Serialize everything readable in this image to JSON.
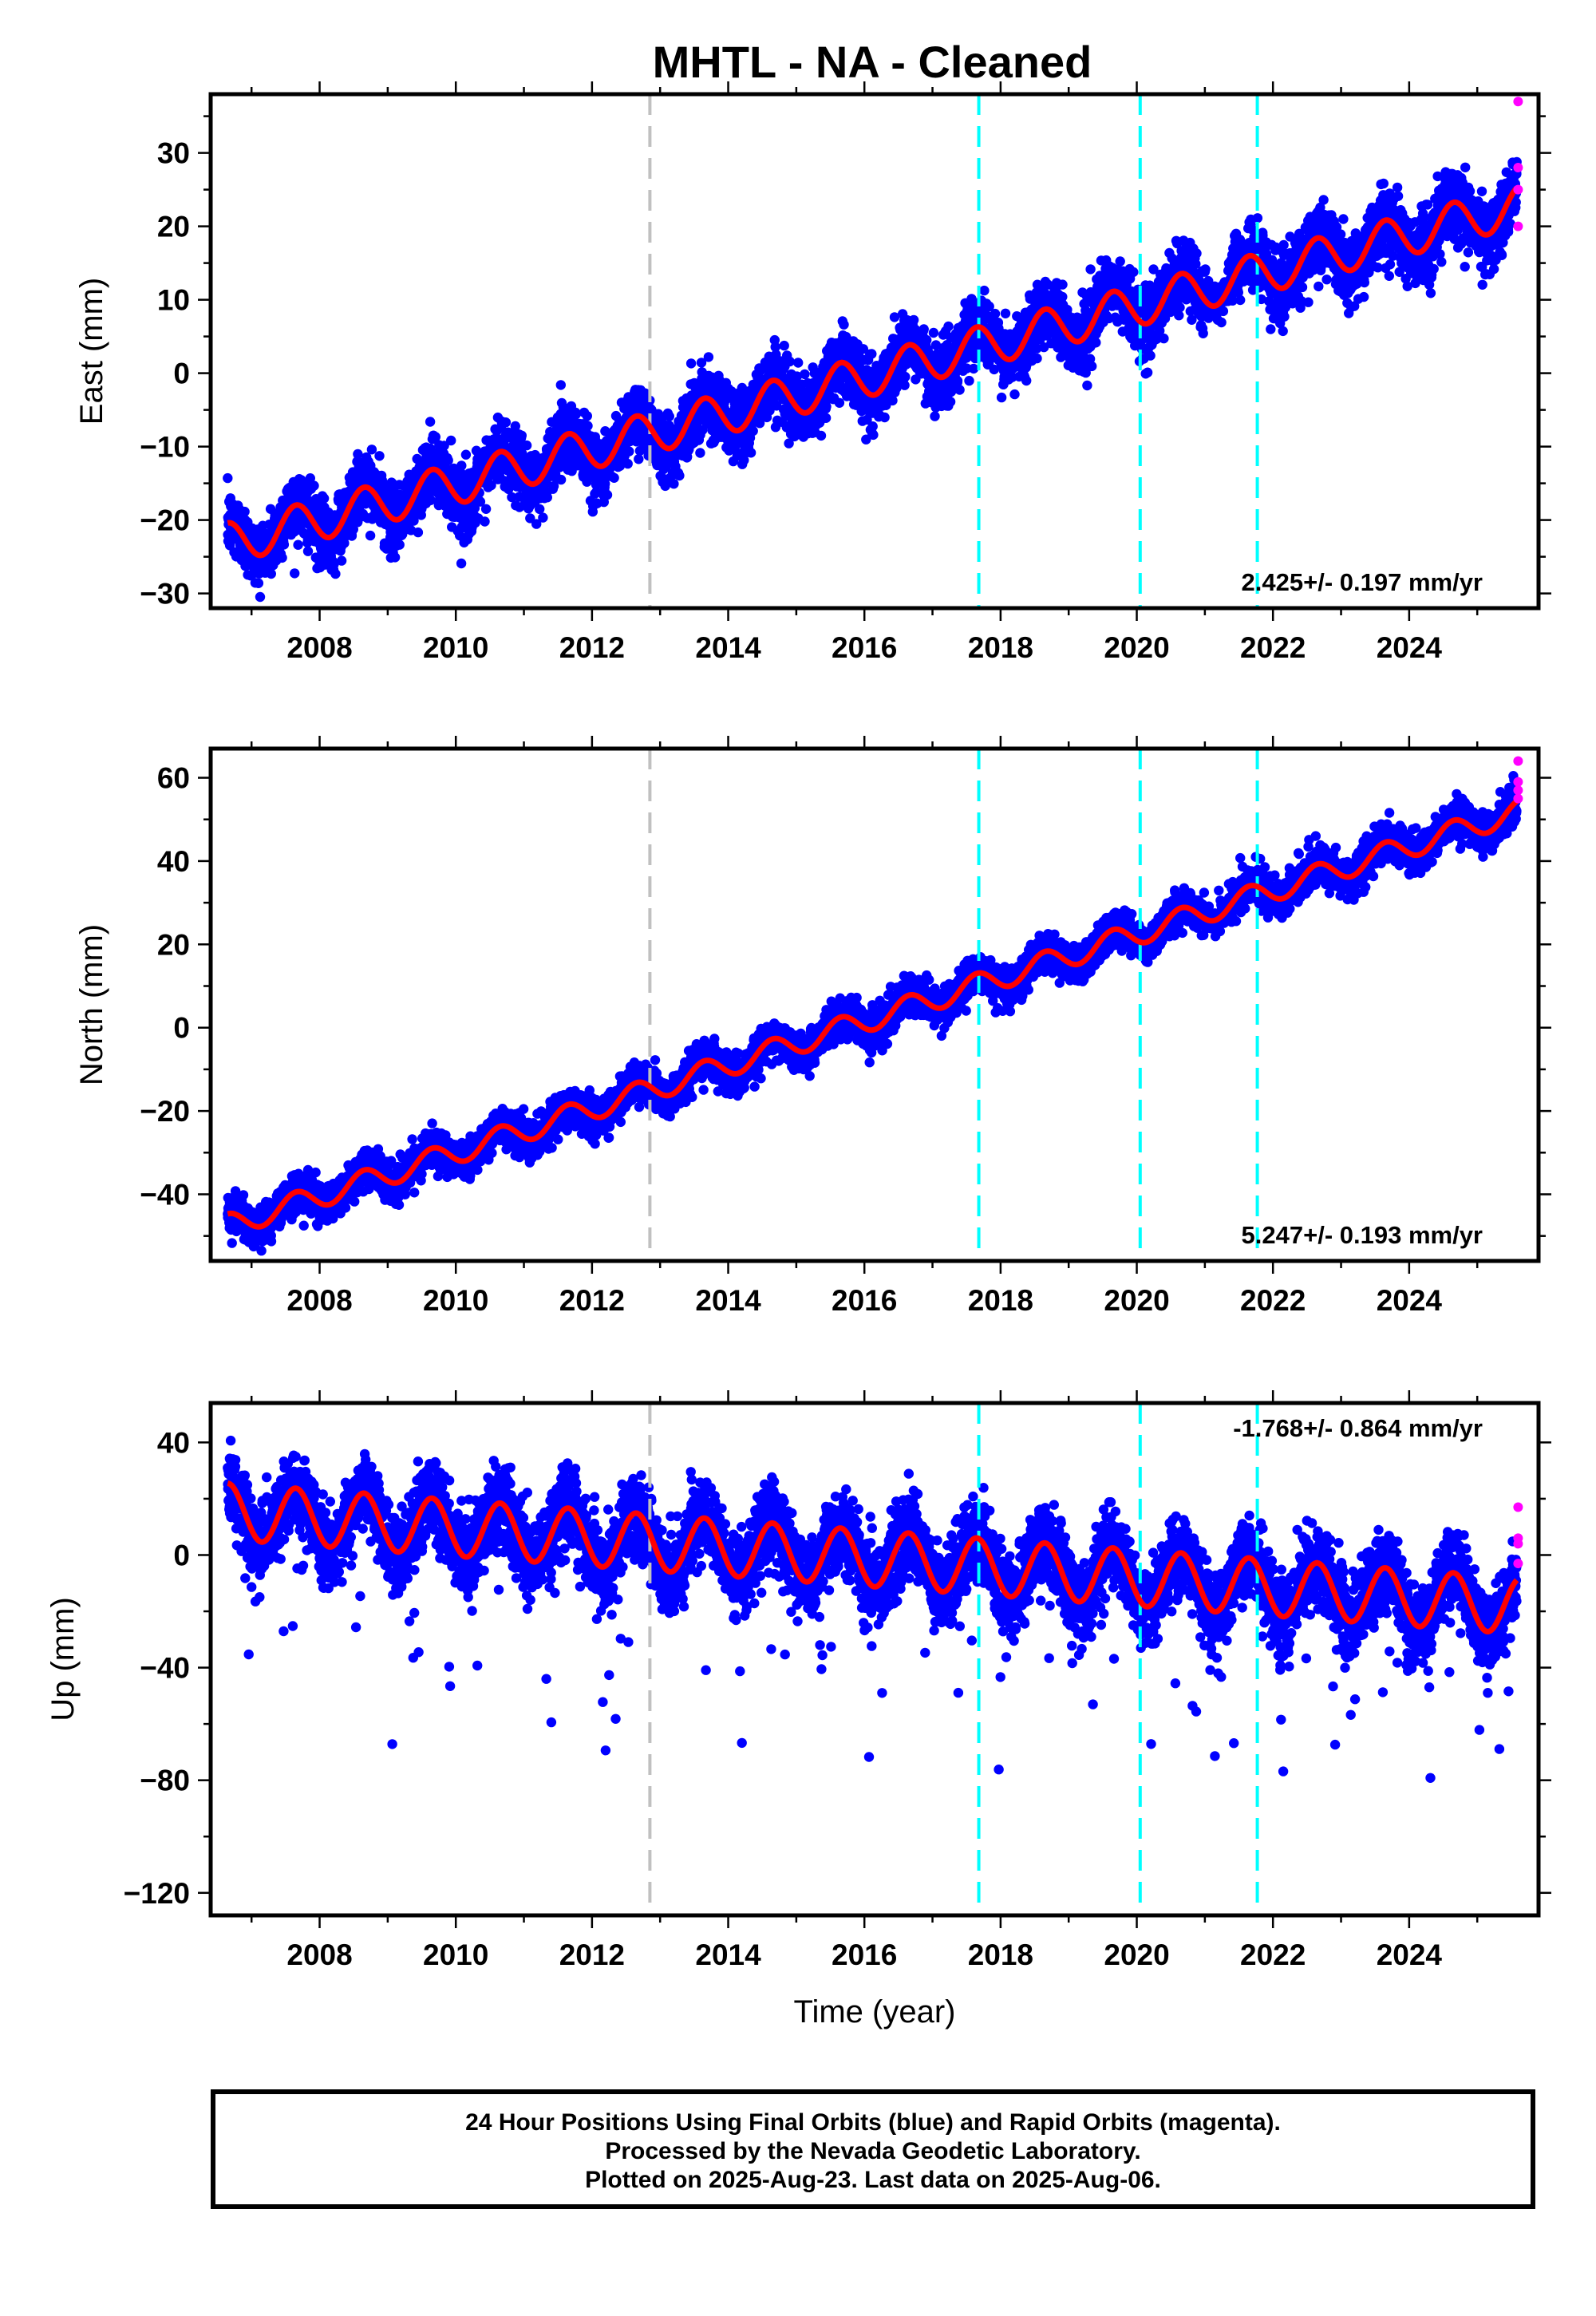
{
  "title": "MHTL  - NA - Cleaned",
  "footer": {
    "line1": "24 Hour Positions Using Final Orbits (blue) and Rapid Orbits (magenta).",
    "line2": "Processed by the Nevada Geodetic Laboratory.",
    "line3": "Plotted on 2025-Aug-23. Last data on 2025-Aug-06."
  },
  "colors": {
    "final_orbits": "#0000ff",
    "rapid_orbits": "#ff00ff",
    "model_fit": "#ff0000",
    "equipment_change": "#00ffff",
    "other_event": "#c0c0c0"
  },
  "chart_data": [
    {
      "type": "scatter",
      "ylabel": "East (mm)",
      "xlabel": "",
      "xlim": [
        2006.4,
        2025.9
      ],
      "ylim": [
        -32,
        38
      ],
      "x_ticks": [
        2008,
        2010,
        2012,
        2014,
        2016,
        2018,
        2020,
        2022,
        2024
      ],
      "y_ticks": [
        -30,
        -20,
        -10,
        0,
        10,
        20,
        30
      ],
      "y_tick_labels": [
        "−30",
        "−20",
        "−10",
        "0",
        "10",
        "20",
        "30"
      ],
      "rate_text": "2.425+/- 0.197 mm/yr",
      "rate_position": "bottom-right",
      "fit": {
        "offset": -23.2,
        "rate": 2.425,
        "annual_amplitude": 2.8
      },
      "gray_lines": [
        2012.85
      ],
      "cyan_lines": [
        2017.68,
        2020.05,
        2021.77
      ],
      "rapid_points": [
        {
          "x": 2025.6,
          "y": 37
        },
        {
          "x": 2025.6,
          "y": 28
        },
        {
          "x": 2025.6,
          "y": 25
        },
        {
          "x": 2025.6,
          "y": 20
        }
      ]
    },
    {
      "type": "scatter",
      "ylabel": "North (mm)",
      "xlabel": "",
      "xlim": [
        2006.4,
        2025.9
      ],
      "ylim": [
        -56,
        67
      ],
      "x_ticks": [
        2008,
        2010,
        2012,
        2014,
        2016,
        2018,
        2020,
        2022,
        2024
      ],
      "y_ticks": [
        -40,
        -20,
        0,
        20,
        40,
        60
      ],
      "y_tick_labels": [
        "−40",
        "−20",
        "0",
        "20",
        "40",
        "60"
      ],
      "rate_text": "5.247+/- 0.193 mm/yr",
      "rate_position": "bottom-right",
      "fit": {
        "offset": -47.5,
        "rate": 5.247,
        "annual_amplitude": 2.8
      },
      "gray_lines": [
        2012.85
      ],
      "cyan_lines": [
        2017.68,
        2020.05,
        2021.77
      ],
      "rapid_points": [
        {
          "x": 2025.6,
          "y": 64
        },
        {
          "x": 2025.6,
          "y": 59
        },
        {
          "x": 2025.6,
          "y": 57
        },
        {
          "x": 2025.6,
          "y": 55
        }
      ]
    },
    {
      "type": "scatter",
      "ylabel": "Up (mm)",
      "xlabel": "Time (year)",
      "xlim": [
        2006.4,
        2025.9
      ],
      "ylim": [
        -128,
        54
      ],
      "x_ticks": [
        2008,
        2010,
        2012,
        2014,
        2016,
        2018,
        2020,
        2022,
        2024
      ],
      "y_ticks": [
        -120,
        -80,
        -40,
        0,
        40
      ],
      "y_tick_labels": [
        "−120",
        "−80",
        "−40",
        "0",
        "40"
      ],
      "rate_text": "-1.768+/- 0.864 mm/yr",
      "rate_position": "top-right",
      "fit": {
        "offset": 15.5,
        "rate": -1.768,
        "annual_amplitude": 10
      },
      "gray_lines": [
        2012.85
      ],
      "cyan_lines": [
        2017.68,
        2020.05,
        2021.77
      ],
      "rapid_points": [
        {
          "x": 2025.6,
          "y": 17
        },
        {
          "x": 2025.6,
          "y": 6
        },
        {
          "x": 2025.6,
          "y": 4
        },
        {
          "x": 2025.6,
          "y": -3
        }
      ]
    }
  ]
}
